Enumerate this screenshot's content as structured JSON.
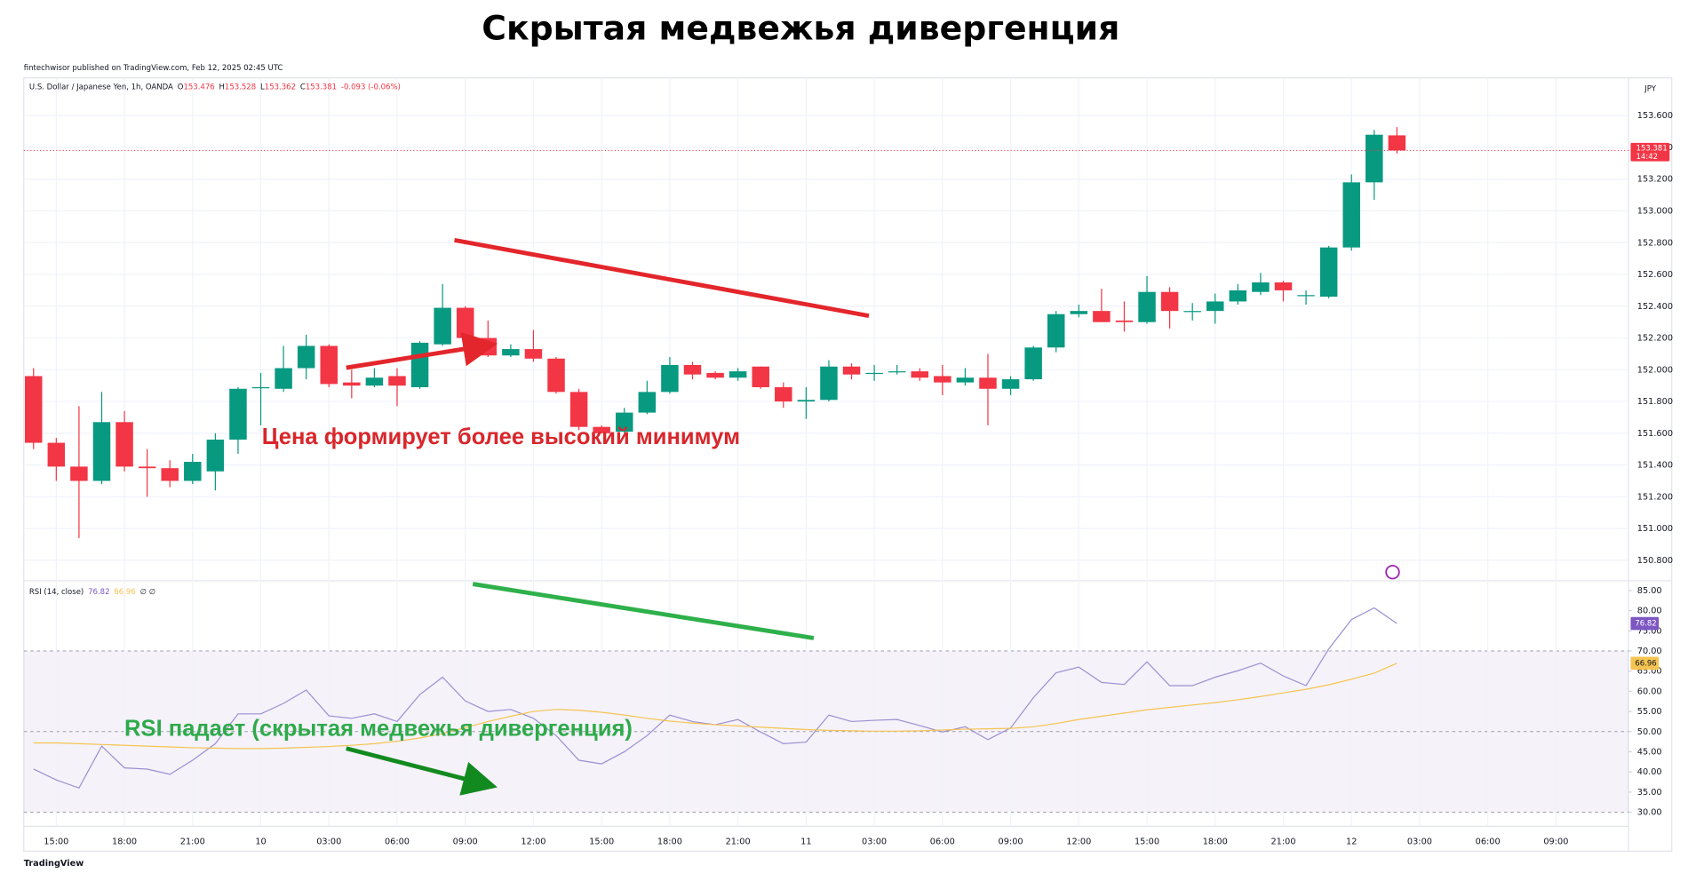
{
  "header": {
    "title": "Скрытая медвежья дивергенция",
    "published": "fintechwisor published on TradingView.com, Feb 12, 2025 02:45 UTC",
    "brand": "TradingView"
  },
  "chart_data": [
    {
      "type": "candlestick",
      "legend": {
        "symbol": "U.S. Dollar / Japanese Yen, 1h, OANDA",
        "o": "O",
        "h": "H",
        "l": "L",
        "c": "C",
        "change": "-0.093 (-0.06%)"
      },
      "currency": "JPY",
      "countdown": "14:42",
      "annotation": "Цена формирует более высокий минимум",
      "up_color": "#089981",
      "down_color": "#f23645",
      "grid": true,
      "ylim": [
        150.671,
        153.838
      ],
      "yticks": [
        {
          "value": 150.8,
          "label": "150.800"
        },
        {
          "value": 151.0,
          "label": "151.000"
        },
        {
          "value": 151.2,
          "label": "151.200"
        },
        {
          "value": 151.4,
          "label": "151.400"
        },
        {
          "value": 151.6,
          "label": "151.600"
        },
        {
          "value": 151.8,
          "label": "151.800"
        },
        {
          "value": 152.0,
          "label": "152.000"
        },
        {
          "value": 152.2,
          "label": "152.200"
        },
        {
          "value": 152.4,
          "label": "152.400"
        },
        {
          "value": 152.6,
          "label": "152.600"
        },
        {
          "value": 152.8,
          "label": "152.800"
        },
        {
          "value": 153.0,
          "label": "153.000"
        },
        {
          "value": 153.2,
          "label": "153.200"
        },
        {
          "value": 153.4,
          "label": "153.400"
        },
        {
          "value": 153.6,
          "label": "153.600"
        }
      ],
      "open": [
        151.96,
        151.54,
        151.39,
        151.3,
        151.67,
        151.39,
        151.38,
        151.3,
        151.36,
        151.56,
        151.89,
        151.88,
        152.01,
        152.15,
        151.92,
        151.9,
        151.96,
        151.89,
        152.16,
        152.39,
        152.2,
        152.09,
        152.13,
        152.07,
        151.86,
        151.64,
        151.61,
        151.73,
        151.86,
        152.03,
        151.98,
        151.95,
        152.02,
        151.89,
        151.8,
        151.81,
        152.02,
        151.98,
        151.99,
        151.99,
        151.96,
        151.92,
        151.95,
        151.88,
        151.94,
        152.14,
        152.35,
        152.37,
        152.31,
        152.3,
        152.49,
        152.37,
        152.37,
        152.43,
        152.49,
        152.55,
        152.47,
        152.46,
        152.77,
        153.18,
        153.476,
        null,
        null,
        null,
        null,
        null,
        null,
        null
      ],
      "high": [
        152.01,
        151.57,
        151.77,
        151.86,
        151.74,
        151.5,
        151.43,
        151.47,
        151.6,
        151.89,
        151.98,
        152.15,
        152.22,
        152.16,
        152.0,
        152.01,
        152.01,
        152.18,
        152.54,
        152.4,
        152.31,
        152.16,
        152.25,
        152.08,
        151.88,
        151.65,
        151.76,
        151.93,
        152.08,
        152.05,
        151.99,
        152.01,
        152.02,
        151.92,
        151.89,
        152.06,
        152.04,
        152.03,
        152.03,
        152.01,
        152.03,
        152.01,
        152.1,
        151.96,
        152.15,
        152.37,
        152.41,
        152.51,
        152.43,
        152.59,
        152.52,
        152.42,
        152.48,
        152.54,
        152.61,
        152.56,
        152.5,
        152.78,
        153.23,
        153.51,
        153.528,
        null,
        null,
        null,
        null,
        null,
        null,
        null
      ],
      "low": [
        151.5,
        151.3,
        150.94,
        151.28,
        151.36,
        151.2,
        151.26,
        151.28,
        151.24,
        151.47,
        151.65,
        151.86,
        151.94,
        151.89,
        151.82,
        151.89,
        151.77,
        151.88,
        152.15,
        152.16,
        152.08,
        152.08,
        152.05,
        151.85,
        151.62,
        151.6,
        151.6,
        151.72,
        151.85,
        151.94,
        151.94,
        151.93,
        151.88,
        151.76,
        151.69,
        151.8,
        151.94,
        151.93,
        151.97,
        151.93,
        151.84,
        151.9,
        151.65,
        151.84,
        151.93,
        152.11,
        152.33,
        152.3,
        152.24,
        152.29,
        152.26,
        152.31,
        152.29,
        152.41,
        152.47,
        152.43,
        152.41,
        152.45,
        152.75,
        153.07,
        153.362,
        null,
        null,
        null,
        null,
        null,
        null,
        null
      ],
      "close": [
        151.54,
        151.39,
        151.3,
        151.67,
        151.39,
        151.38,
        151.3,
        151.42,
        151.56,
        151.88,
        151.89,
        152.01,
        152.15,
        151.91,
        151.9,
        151.95,
        151.9,
        152.17,
        152.39,
        152.2,
        152.09,
        152.13,
        152.07,
        151.86,
        151.64,
        151.6,
        151.73,
        151.86,
        152.03,
        151.97,
        151.95,
        151.99,
        151.89,
        151.8,
        151.81,
        152.02,
        151.97,
        151.98,
        151.99,
        151.95,
        151.92,
        151.95,
        151.88,
        151.94,
        152.14,
        152.35,
        152.37,
        152.3,
        152.3,
        152.49,
        152.37,
        152.37,
        152.43,
        152.5,
        152.55,
        152.5,
        152.47,
        152.77,
        153.18,
        153.48,
        153.381,
        null,
        null,
        null,
        null,
        null,
        null,
        null
      ]
    },
    {
      "type": "line",
      "title": "RSI (14, close)",
      "extra": "∅ ∅",
      "annotation": "RSI падает (скрытая медвежья дивергенция)",
      "categories": [
        null,
        "15:00",
        null,
        null,
        "18:00",
        null,
        null,
        "21:00",
        null,
        null,
        "10",
        null,
        null,
        "03:00",
        null,
        null,
        "06:00",
        null,
        null,
        "09:00",
        null,
        null,
        "12:00",
        null,
        null,
        "15:00",
        null,
        null,
        "18:00",
        null,
        null,
        "21:00",
        null,
        null,
        "11",
        null,
        null,
        "03:00",
        null,
        null,
        "06:00",
        null,
        null,
        "09:00",
        null,
        null,
        "12:00",
        null,
        null,
        "15:00",
        null,
        null,
        "18:00",
        null,
        null,
        "21:00",
        null,
        null,
        "12",
        null,
        null,
        "03:00",
        null,
        null,
        "06:00",
        null,
        null,
        "09:00"
      ],
      "series": [
        {
          "color": "#9c8fd1",
          "values": [
            40.7,
            38,
            36,
            46.4,
            41,
            40.7,
            39.4,
            42.9,
            47,
            54.4,
            54.4,
            57,
            60.3,
            53.9,
            53.3,
            54.4,
            52.5,
            59.2,
            63.5,
            57.6,
            55,
            55.5,
            53.3,
            49,
            42.9,
            42,
            45,
            49,
            54.1,
            52.5,
            51.7,
            53,
            49.9,
            47,
            47.4,
            54.1,
            52.5,
            52.8,
            53,
            51.5,
            49.9,
            51.2,
            48,
            50.9,
            58.4,
            64.6,
            66,
            62.2,
            61.7,
            67.3,
            61.4,
            61.4,
            63.5,
            65.1,
            67,
            63.8,
            61.4,
            70.5,
            77.8,
            80.7,
            76.82,
            null,
            null,
            null,
            null,
            null,
            null,
            null
          ]
        },
        {
          "color": "#f5c451",
          "values": [
            47.2,
            47.2,
            47.0,
            46.8,
            46.6,
            46.4,
            46.2,
            46.0,
            45.9,
            45.8,
            45.8,
            45.9,
            46.1,
            46.3,
            46.6,
            47.0,
            47.6,
            48.4,
            49.5,
            51.0,
            52.5,
            53.8,
            55.0,
            55.5,
            55.3,
            54.8,
            54.1,
            53.3,
            52.6,
            52.1,
            51.7,
            51.4,
            51.1,
            50.8,
            50.5,
            50.3,
            50.2,
            50.1,
            50.1,
            50.2,
            50.4,
            50.6,
            50.7,
            50.8,
            51.2,
            52.0,
            53.0,
            53.8,
            54.6,
            55.4,
            56.0,
            56.6,
            57.2,
            57.9,
            58.7,
            59.6,
            60.5,
            61.6,
            63.0,
            64.5,
            66.96,
            null,
            null,
            null,
            null,
            null,
            null,
            null
          ]
        }
      ],
      "levels": [
        30,
        50,
        70
      ],
      "ylim": [
        27.05,
        87.42
      ],
      "yticks": [
        {
          "value": 30,
          "label": "30.00"
        },
        {
          "value": 35,
          "label": "35.00"
        },
        {
          "value": 40,
          "label": "40.00"
        },
        {
          "value": 45,
          "label": "45.00"
        },
        {
          "value": 50,
          "label": "50.00"
        },
        {
          "value": 55,
          "label": "55.00"
        },
        {
          "value": 60,
          "label": "60.00"
        },
        {
          "value": 65,
          "label": "65.00"
        },
        {
          "value": 70,
          "label": "70.00"
        },
        {
          "value": 75,
          "label": "75.00"
        },
        {
          "value": 80,
          "label": "80.00"
        },
        {
          "value": 85,
          "label": "85.00"
        }
      ]
    }
  ]
}
